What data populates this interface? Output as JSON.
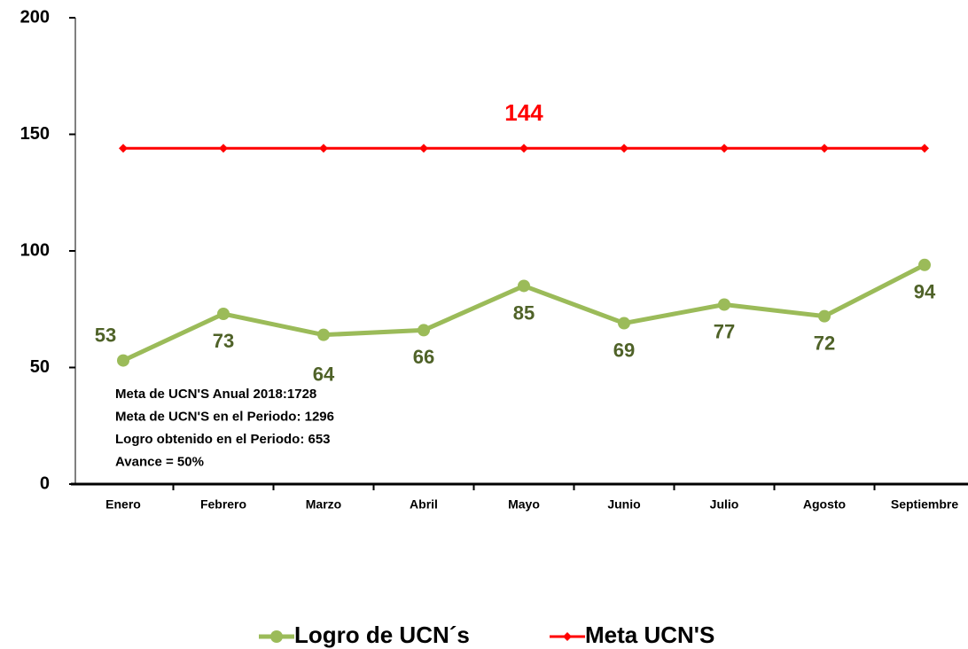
{
  "chart_data": {
    "type": "line",
    "categories": [
      "Enero",
      "Febrero",
      "Marzo",
      "Abril",
      "Mayo",
      "Junio",
      "Julio",
      "Agosto",
      "Septiembre"
    ],
    "series": [
      {
        "name": "Logro de UCN´s",
        "color": "#9bbb59",
        "label_color": "#4f6228",
        "values": [
          53,
          73,
          64,
          66,
          85,
          69,
          77,
          72,
          94
        ]
      },
      {
        "name": "Meta UCN'S",
        "color": "#ff0000",
        "label_color": "#ff0000",
        "values": [
          144,
          144,
          144,
          144,
          144,
          144,
          144,
          144,
          144
        ],
        "label_points": [
          4
        ]
      }
    ],
    "ylim": [
      0,
      200
    ],
    "yticks": [
      0,
      50,
      100,
      150,
      200
    ],
    "annotations": [
      "Meta de UCN'S Anual 2018:1728",
      "Meta de UCN'S en el Periodo: 1296",
      "Logro obtenido en el Periodo: 653",
      "Avance = 50%"
    ],
    "legend": "bottom"
  }
}
